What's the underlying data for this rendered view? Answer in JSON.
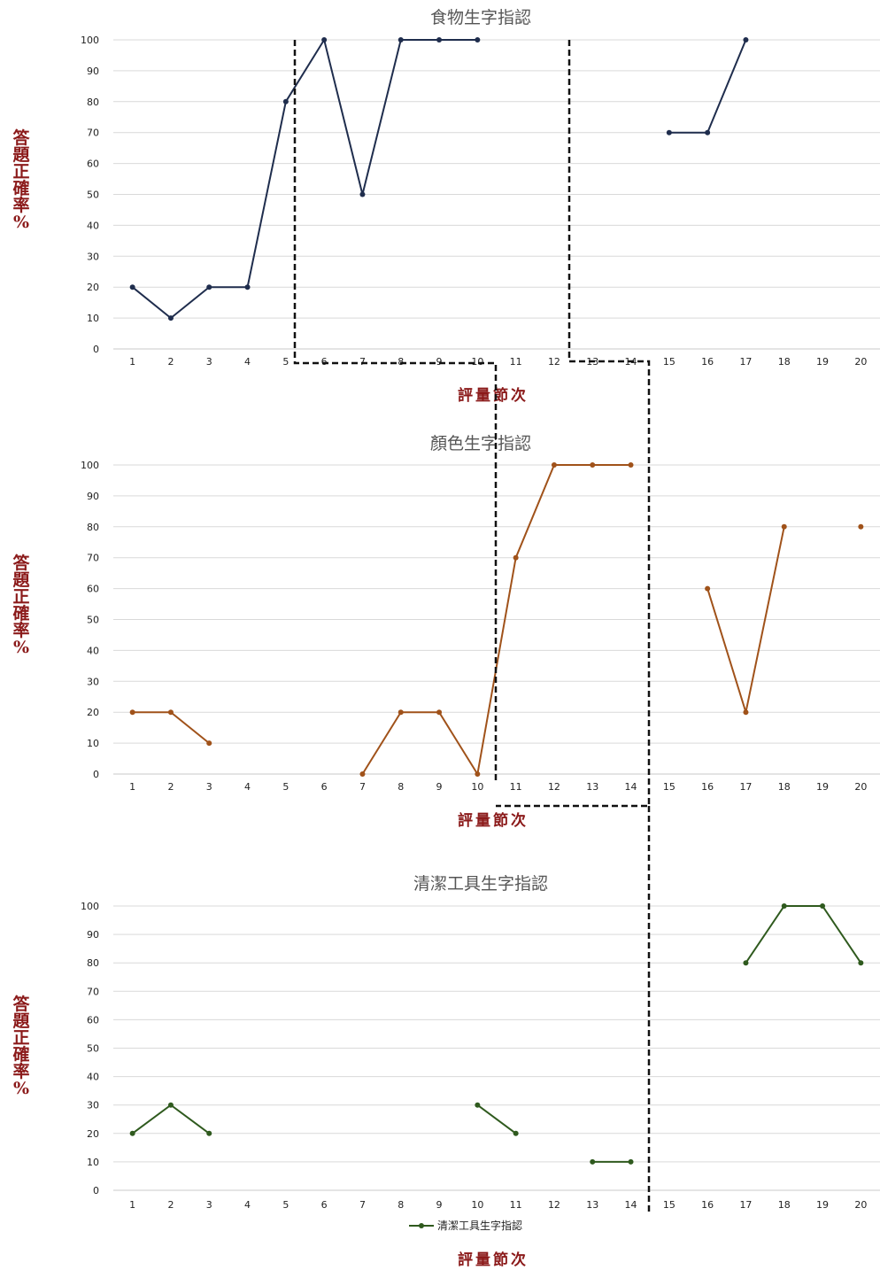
{
  "figure": {
    "ylabel": "答題正確率%",
    "xlabel": "評量節次",
    "legend_label": "清潔工具生字指認"
  },
  "chart_data": [
    {
      "type": "line",
      "title": "食物生字指認",
      "color": "#1f2d4d",
      "categories": [
        1,
        2,
        3,
        4,
        5,
        6,
        7,
        8,
        9,
        10,
        11,
        12,
        13,
        14,
        15,
        16,
        17,
        18,
        19,
        20
      ],
      "ylim": [
        0,
        100
      ],
      "yticks": [
        0,
        10,
        20,
        30,
        40,
        50,
        60,
        70,
        80,
        90,
        100
      ],
      "grid": true,
      "series": [
        {
          "values": [
            20,
            10,
            20,
            20,
            80,
            100,
            50,
            100,
            100,
            100,
            null,
            null,
            null,
            null,
            70,
            70,
            100,
            null,
            null,
            null
          ]
        }
      ]
    },
    {
      "type": "line",
      "title": "顏色生字指認",
      "color": "#a0521a",
      "categories": [
        1,
        2,
        3,
        4,
        5,
        6,
        7,
        8,
        9,
        10,
        11,
        12,
        13,
        14,
        15,
        16,
        17,
        18,
        19,
        20
      ],
      "ylim": [
        0,
        100
      ],
      "yticks": [
        0,
        10,
        20,
        30,
        40,
        50,
        60,
        70,
        80,
        90,
        100
      ],
      "grid": true,
      "series": [
        {
          "values": [
            20,
            20,
            10,
            null,
            null,
            null,
            0,
            20,
            20,
            0,
            70,
            100,
            100,
            100,
            null,
            60,
            20,
            80,
            null,
            80
          ]
        }
      ]
    },
    {
      "type": "line",
      "title": "清潔工具生字指認",
      "color": "#2f5a1e",
      "categories": [
        1,
        2,
        3,
        4,
        5,
        6,
        7,
        8,
        9,
        10,
        11,
        12,
        13,
        14,
        15,
        16,
        17,
        18,
        19,
        20
      ],
      "ylim": [
        0,
        100
      ],
      "yticks": [
        0,
        10,
        20,
        30,
        40,
        50,
        60,
        70,
        80,
        90,
        100
      ],
      "grid": true,
      "legend": "bottom",
      "series": [
        {
          "name": "清潔工具生字指認",
          "values": [
            20,
            30,
            20,
            null,
            null,
            null,
            null,
            null,
            null,
            30,
            20,
            null,
            10,
            10,
            null,
            null,
            80,
            100,
            100,
            80
          ]
        }
      ]
    }
  ]
}
